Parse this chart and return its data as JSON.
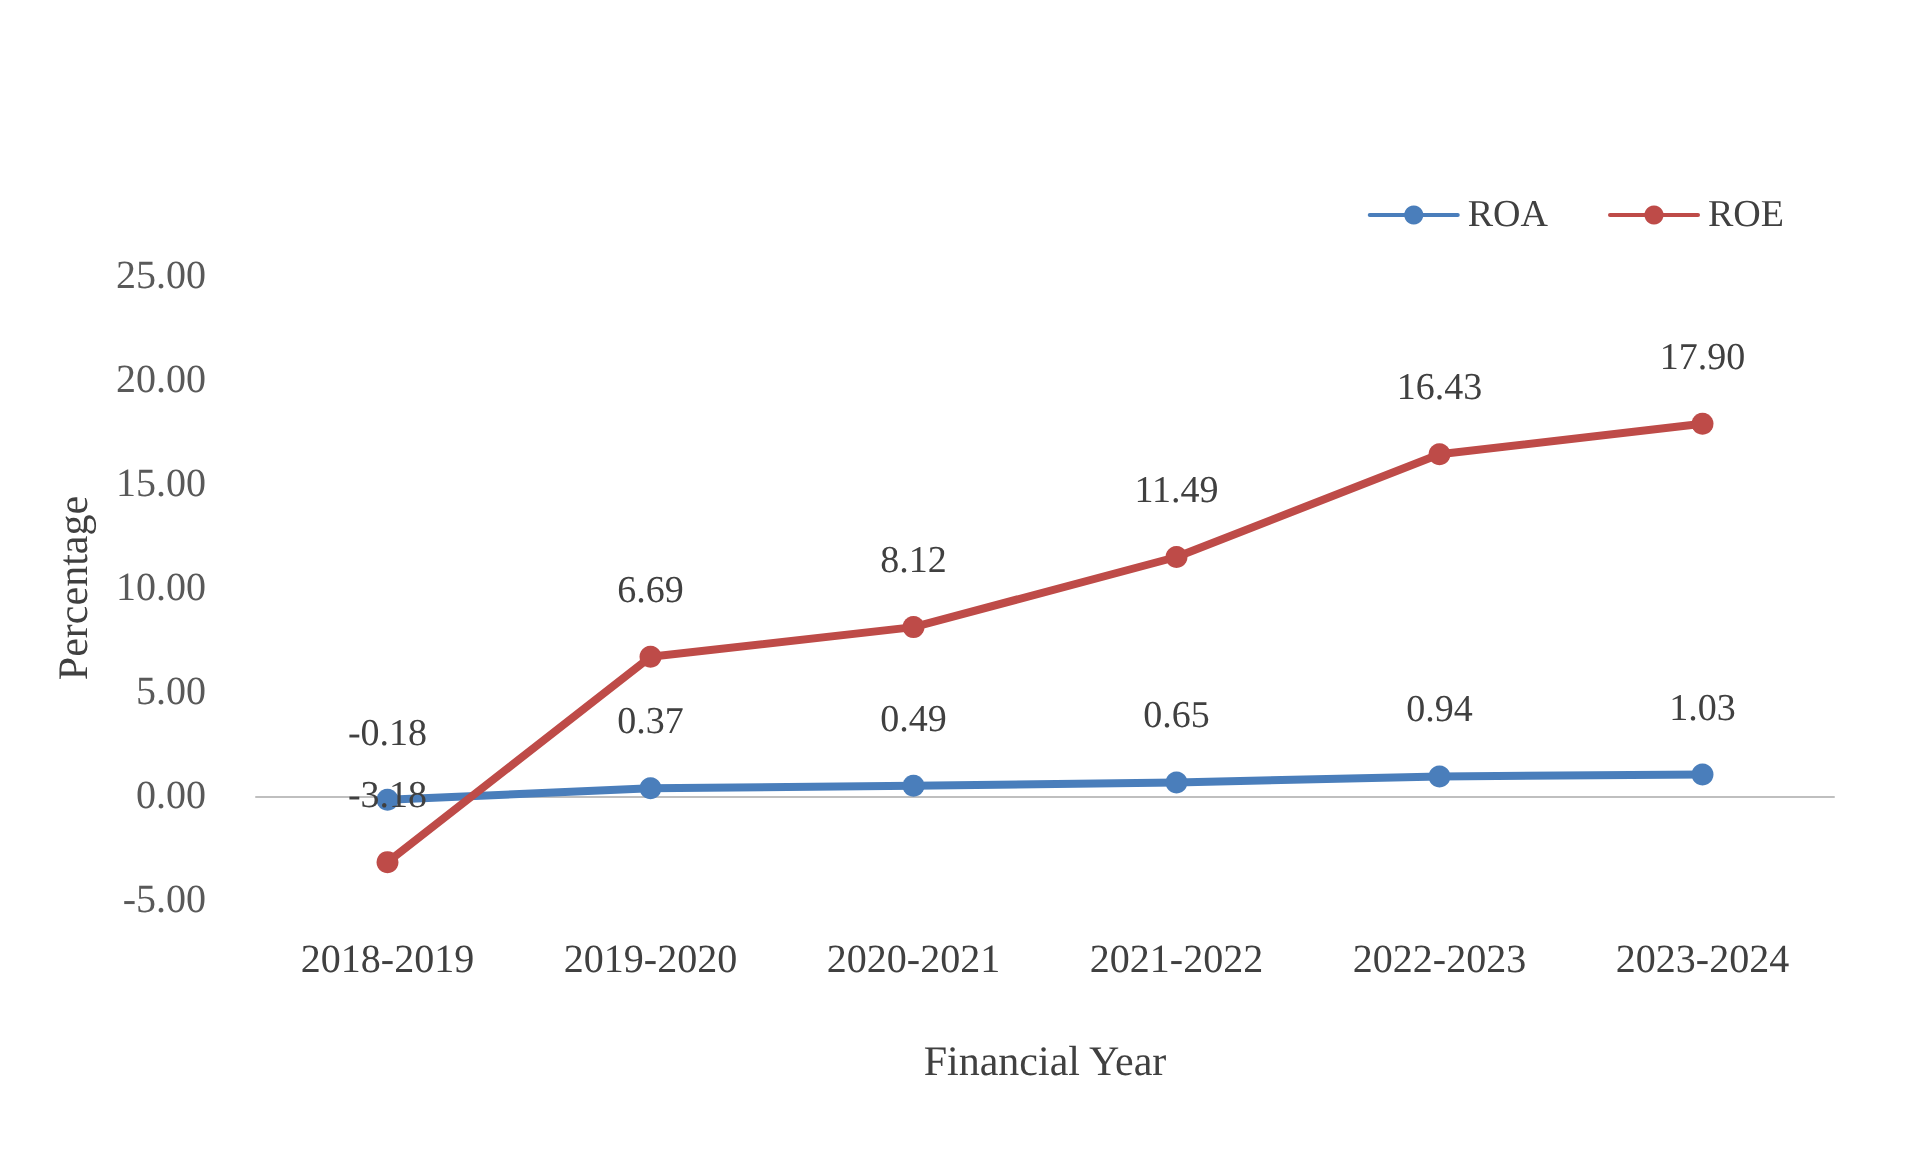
{
  "chart_data": {
    "type": "line",
    "xlabel": "Financial Year",
    "ylabel": "Percentage",
    "categories": [
      "2018-2019",
      "2019-2020",
      "2020-2021",
      "2021-2022",
      "2022-2023",
      "2023-2024"
    ],
    "series": [
      {
        "name": "ROA",
        "color": "#4a7ebb",
        "values": [
          -0.18,
          0.37,
          0.49,
          0.65,
          0.94,
          1.03
        ]
      },
      {
        "name": "ROE",
        "color": "#be4b48",
        "values": [
          -3.18,
          6.69,
          8.12,
          11.49,
          16.43,
          17.9
        ],
        "value_labels": [
          "-3.18",
          "6.69",
          "8.12",
          "11.49",
          "16.43",
          "17.90"
        ]
      }
    ],
    "value_labels": [
      "-0.18",
      "0.37",
      "0.49",
      "0.65",
      "0.94",
      "1.03"
    ],
    "ylim": [
      -5,
      25
    ],
    "yticks": [
      {
        "value": -5,
        "label": "-5.00"
      },
      {
        "value": 0,
        "label": "0.00"
      },
      {
        "value": 5,
        "label": "5.00"
      },
      {
        "value": 10,
        "label": "10.00"
      },
      {
        "value": 15,
        "label": "15.00"
      },
      {
        "value": 20,
        "label": "20.00"
      },
      {
        "value": 25,
        "label": "25.00"
      }
    ],
    "legend": "top right",
    "marker": "circle",
    "line_style": "solid"
  }
}
